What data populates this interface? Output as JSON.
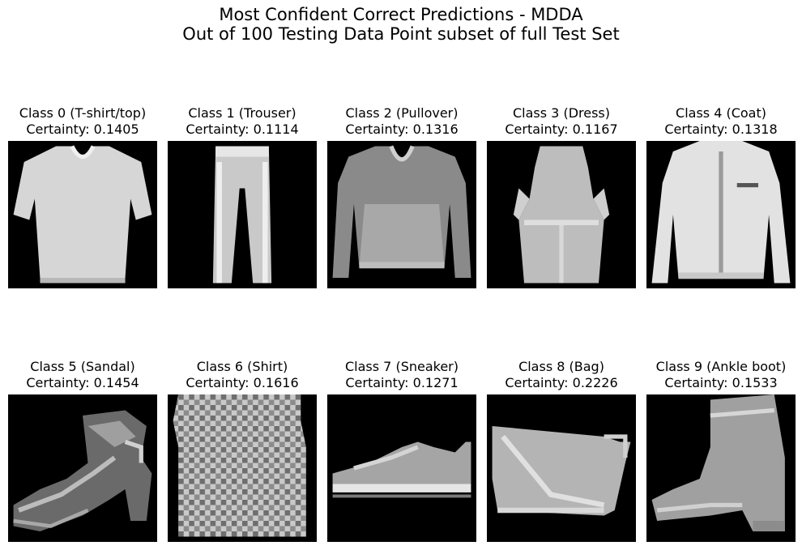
{
  "figure": {
    "title_line1": "Most Confident Correct Predictions - MDDA",
    "title_line2": "Out of 100 Testing Data Point subset of full Test Set"
  },
  "panels": [
    {
      "class_label": "Class 0 (T-shirt/top)",
      "certainty_label": "Certainty: 0.1405",
      "item": "tshirt-image"
    },
    {
      "class_label": "Class 1 (Trouser)",
      "certainty_label": "Certainty: 0.1114",
      "item": "trouser-image"
    },
    {
      "class_label": "Class 2 (Pullover)",
      "certainty_label": "Certainty: 0.1316",
      "item": "pullover-image"
    },
    {
      "class_label": "Class 3 (Dress)",
      "certainty_label": "Certainty: 0.1167",
      "item": "dress-image"
    },
    {
      "class_label": "Class 4 (Coat)",
      "certainty_label": "Certainty: 0.1318",
      "item": "coat-image"
    },
    {
      "class_label": "Class 5 (Sandal)",
      "certainty_label": "Certainty: 0.1454",
      "item": "sandal-image"
    },
    {
      "class_label": "Class 6 (Shirt)",
      "certainty_label": "Certainty: 0.1616",
      "item": "shirt-image"
    },
    {
      "class_label": "Class 7 (Sneaker)",
      "certainty_label": "Certainty: 0.1271",
      "item": "sneaker-image"
    },
    {
      "class_label": "Class 8 (Bag)",
      "certainty_label": "Certainty: 0.2226",
      "item": "bag-image"
    },
    {
      "class_label": "Class 9 (Ankle boot)",
      "certainty_label": "Certainty: 0.1533",
      "item": "ankle-boot-image"
    }
  ]
}
